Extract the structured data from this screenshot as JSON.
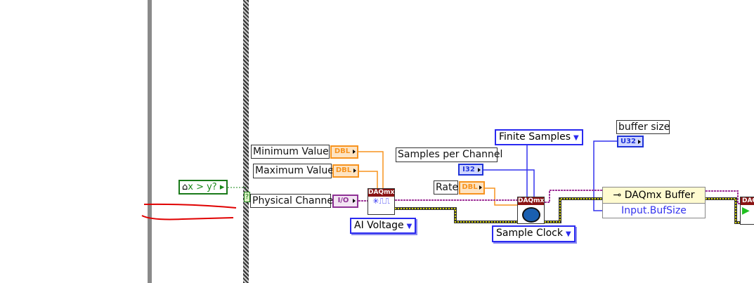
{
  "comparison": {
    "label": "x > y?"
  },
  "case_selector": {
    "label": "?"
  },
  "controls": {
    "min_value": {
      "label": "Minimum Value",
      "type": "DBL"
    },
    "max_value": {
      "label": "Maximum Value",
      "type": "DBL"
    },
    "physical_channel": {
      "label": "Physical Channel",
      "type": "I/O"
    },
    "samples_per_channel": {
      "label": "Samples per Channel",
      "type": "I32"
    },
    "rate": {
      "label": "Rate",
      "type": "DBL"
    },
    "buffer_size": {
      "label": "buffer size",
      "type": "U32"
    }
  },
  "rings": {
    "ai_voltage": "AI Voltage",
    "finite_samples": "Finite Samples",
    "sample_clock": "Sample Clock"
  },
  "nodes": {
    "create_channel": "DAQmx",
    "timing": "DAQmx",
    "start": "DAQ"
  },
  "property_node": {
    "title": "DAQmx Buffer",
    "property": "Input.BufSize"
  },
  "colors": {
    "task_wire": "#a0359a",
    "error_wire": "#c8c800",
    "dbl": "#f7931e",
    "integer": "#1f33d8",
    "annotation": "#e00000"
  }
}
